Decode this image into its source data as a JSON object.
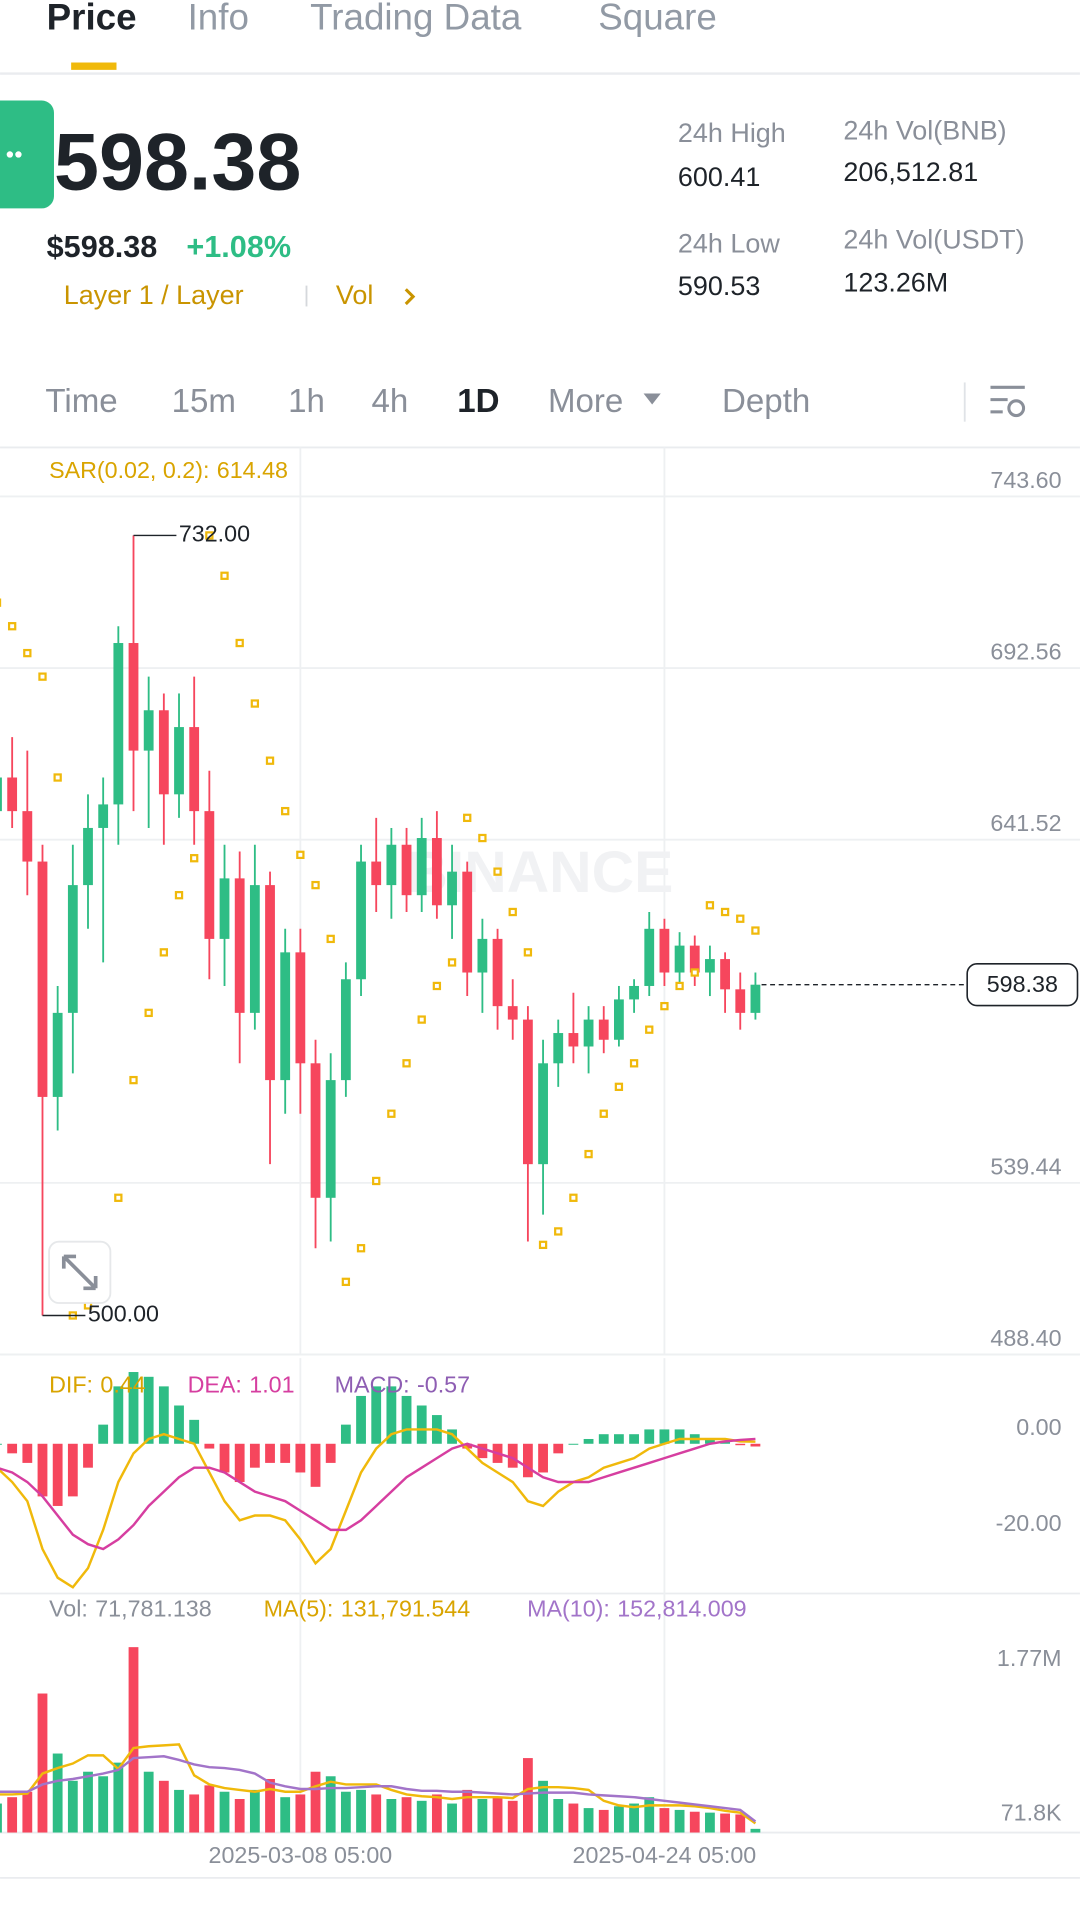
{
  "tabs": [
    "Price",
    "Info",
    "Trading Data",
    "Square"
  ],
  "header": {
    "price": "598.38",
    "price_usd": "$598.38",
    "change": "+1.08%",
    "tag": "Layer 1 / Layer",
    "vol_link": "Vol"
  },
  "stats": [
    {
      "label": "24h High",
      "value": "600.41"
    },
    {
      "label": "24h Low",
      "value": "590.53"
    },
    {
      "label": "24h Vol(BNB)",
      "value": "206,512.81"
    },
    {
      "label": "24h Vol(USDT)",
      "value": "123.26M"
    }
  ],
  "timeframes": [
    "Time",
    "15m",
    "1h",
    "4h",
    "1D",
    "More",
    "Depth"
  ],
  "chart_data": [
    {
      "type": "candlestick",
      "watermark": "BINANCE",
      "up_color": "#2ebd85",
      "down_color": "#f6465d",
      "ylim": [
        488.4,
        758.18
      ],
      "yticks": [
        {
          "value": 743.6,
          "label": "743.60"
        },
        {
          "value": 692.56,
          "label": "692.56"
        },
        {
          "value": 641.52,
          "label": "641.52"
        },
        {
          "value": 539.44,
          "label": "539.44"
        },
        {
          "value": 488.4,
          "label": "488.40"
        }
      ],
      "open": [
        650,
        660,
        650,
        635,
        565,
        590,
        628,
        645,
        652,
        700,
        668,
        680,
        655,
        675,
        650,
        612,
        630,
        590,
        628,
        570,
        608,
        575,
        535,
        570,
        600,
        635,
        628,
        640,
        625,
        642,
        622,
        632,
        602,
        612,
        592,
        588,
        545,
        575,
        584,
        580,
        588,
        582,
        594,
        598,
        615,
        602,
        610,
        602,
        606,
        597,
        590
      ],
      "high": [
        668,
        672,
        668,
        640,
        598,
        640,
        655,
        660,
        705,
        732,
        690,
        685,
        685,
        690,
        662,
        640,
        638,
        640,
        632,
        615,
        615,
        582,
        578,
        605,
        640,
        648,
        645,
        645,
        648,
        650,
        640,
        635,
        618,
        615,
        600,
        592,
        582,
        588,
        596,
        592,
        592,
        598,
        600,
        620,
        618,
        614,
        613,
        610,
        608,
        602,
        602
      ],
      "low": [
        640,
        645,
        625,
        500,
        555,
        572,
        615,
        605,
        640,
        650,
        645,
        640,
        648,
        640,
        600,
        598,
        575,
        585,
        545,
        560,
        560,
        520,
        522,
        565,
        595,
        620,
        618,
        620,
        620,
        618,
        612,
        595,
        590,
        585,
        582,
        522,
        530,
        568,
        575,
        572,
        578,
        580,
        590,
        595,
        598,
        598,
        598,
        595,
        590,
        585,
        588
      ],
      "close": [
        660,
        650,
        635,
        565,
        590,
        628,
        645,
        652,
        700,
        668,
        680,
        655,
        675,
        650,
        612,
        630,
        590,
        628,
        570,
        608,
        575,
        535,
        570,
        600,
        635,
        628,
        640,
        625,
        642,
        622,
        632,
        602,
        612,
        592,
        588,
        545,
        575,
        584,
        580,
        588,
        582,
        594,
        598,
        615,
        602,
        610,
        602,
        606,
        597,
        590,
        598.38
      ],
      "sar": {
        "name": "SAR(0.02, 0.2):",
        "color": "#f0b90b",
        "values": [
          712,
          705,
          697,
          690,
          660,
          500,
          503,
          515,
          535,
          570,
          590,
          608,
          625,
          636,
          732,
          720,
          700,
          682,
          665,
          650,
          637,
          628,
          612,
          510,
          520,
          540,
          560,
          575,
          588,
          598,
          605,
          648,
          642,
          632,
          620,
          608,
          521,
          525,
          535,
          548,
          560,
          568,
          575,
          585,
          592,
          598,
          602,
          622,
          620,
          618,
          614.48
        ]
      },
      "annotations": [
        {
          "value": 732,
          "label": "732.00"
        },
        {
          "value": 500,
          "label": "500.00"
        }
      ]
    },
    {
      "type": "macd",
      "ylim": [
        -31.3,
        17.9
      ],
      "yticks": [
        {
          "value": 0,
          "label": "0.00"
        },
        {
          "value": -20,
          "label": "-20.00"
        }
      ],
      "series": [
        {
          "name": "DIF:",
          "color": "#f0b90b",
          "values": [
            -5,
            -8,
            -12,
            -22,
            -28,
            -30,
            -26,
            -18,
            -8,
            -2,
            1,
            2,
            1,
            0,
            -6,
            -12,
            -16,
            -15,
            -15,
            -16,
            -20,
            -25,
            -22,
            -14,
            -6,
            -1,
            2,
            3,
            3,
            3,
            2,
            -1,
            -4,
            -6,
            -8,
            -12,
            -13,
            -10,
            -8,
            -7,
            -5,
            -4,
            -3,
            -1,
            0,
            1,
            1,
            1,
            1,
            0.5,
            0.44
          ]
        },
        {
          "name": "DEA:",
          "color": "#d63ea0",
          "values": [
            -5,
            -6,
            -8,
            -11,
            -15,
            -19,
            -21,
            -22,
            -20,
            -17,
            -13,
            -10,
            -7,
            -5,
            -5,
            -6,
            -8,
            -10,
            -11,
            -12,
            -14,
            -16,
            -18,
            -18,
            -16,
            -13,
            -10,
            -7,
            -5,
            -3,
            -1,
            0,
            -1,
            -2,
            -3,
            -5,
            -7,
            -8,
            -8,
            -8,
            -7,
            -6,
            -5,
            -4,
            -3,
            -2,
            -1,
            0,
            0.5,
            0.8,
            1.01
          ]
        },
        {
          "name": "MACD:",
          "color": "#8e5eb3",
          "values": [
            0,
            -2,
            -4,
            -11,
            -13,
            -11,
            -5,
            4,
            12,
            15,
            14,
            12,
            8,
            5,
            -1,
            -6,
            -8,
            -5,
            -4,
            -4,
            -6,
            -9,
            -4,
            4,
            10,
            12,
            12,
            10,
            8,
            6,
            3,
            -1,
            -3,
            -4,
            -5,
            -7,
            -6,
            -2,
            0,
            1,
            2,
            2,
            2,
            3,
            3,
            3,
            2,
            1,
            0.5,
            -0.3,
            -0.57
          ]
        }
      ]
    },
    {
      "type": "volume",
      "ylim": [
        31400,
        2660000
      ],
      "yticks": [
        {
          "value": 1770000,
          "label": "1.77M"
        },
        {
          "value": 71800,
          "label": "71.8K"
        }
      ],
      "xticks": [
        {
          "value": 20,
          "label": "2025-03-08 05:00"
        },
        {
          "value": 44,
          "label": "2025-04-24 05:00"
        }
      ],
      "series": [
        {
          "name": "Vol:",
          "color": "#8a8f99",
          "current_label": "71,781.138",
          "values": [
            350000,
            420000,
            480000,
            1560000,
            900000,
            600000,
            700000,
            650000,
            800000,
            2070000,
            700000,
            600000,
            500000,
            450000,
            550000,
            480000,
            400000,
            500000,
            620000,
            420000,
            450000,
            700000,
            650000,
            480000,
            500000,
            450000,
            400000,
            420000,
            380000,
            450000,
            350000,
            500000,
            400000,
            420000,
            380000,
            850000,
            600000,
            400000,
            350000,
            300000,
            280000,
            320000,
            350000,
            420000,
            300000,
            280000,
            260000,
            250000,
            240000,
            230000,
            71781.138
          ]
        },
        {
          "name": "MA(5):",
          "color": "#f0b90b",
          "current_label": "131,791.544",
          "values": [
            450000,
            450000,
            460000,
            680000,
            740000,
            790000,
            880000,
            880000,
            730000,
            960000,
            980000,
            990000,
            1000000,
            660000,
            560000,
            520000,
            500000,
            480000,
            510000,
            480000,
            480000,
            540000,
            590000,
            560000,
            560000,
            560000,
            500000,
            450000,
            430000,
            420000,
            400000,
            420000,
            420000,
            420000,
            410000,
            510000,
            530000,
            530000,
            520000,
            500000,
            380000,
            330000,
            310000,
            330000,
            330000,
            330000,
            320000,
            300000,
            270000,
            250000,
            131791.544
          ]
        },
        {
          "name": "MA(10):",
          "color": "#a274c9",
          "current_label": "152,814.009",
          "values": [
            480000,
            480000,
            480000,
            560000,
            600000,
            620000,
            650000,
            680000,
            720000,
            850000,
            860000,
            870000,
            830000,
            780000,
            750000,
            740000,
            720000,
            680000,
            580000,
            540000,
            510000,
            510000,
            520000,
            520000,
            530000,
            540000,
            540000,
            510000,
            490000,
            490000,
            480000,
            480000,
            470000,
            460000,
            450000,
            460000,
            470000,
            470000,
            470000,
            450000,
            440000,
            430000,
            420000,
            400000,
            380000,
            360000,
            340000,
            320000,
            300000,
            280000,
            152814.009
          ]
        }
      ]
    }
  ]
}
